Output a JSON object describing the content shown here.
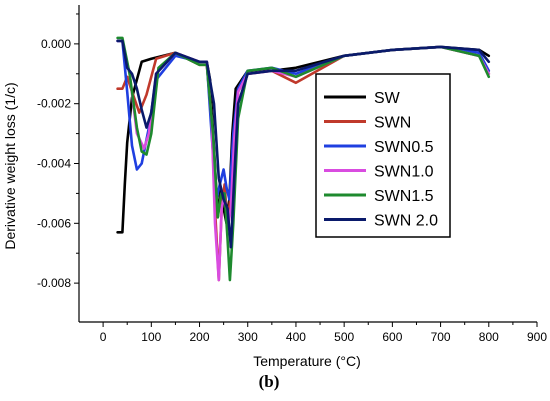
{
  "chart_data": {
    "type": "line",
    "xlabel": "Temperature (°C)",
    "ylabel": "Derivative weight loss (1/c)",
    "panel_label": "(b)",
    "xlim": [
      -50,
      900
    ],
    "ylim": [
      -0.0093,
      0.0013
    ],
    "x_ticks": [
      0,
      100,
      200,
      300,
      400,
      500,
      600,
      700,
      800,
      900
    ],
    "y_ticks": [
      0.0,
      -0.002,
      -0.004,
      -0.006,
      -0.008
    ],
    "y_tick_labels": [
      "0.000",
      "-0.002",
      "-0.004",
      "-0.006",
      "-0.008"
    ],
    "legend_position": "right-middle",
    "series": [
      {
        "name": "SW",
        "color": "#000000",
        "x": [
          30,
          40,
          45,
          50,
          60,
          80,
          100,
          150,
          200,
          215,
          222,
          230,
          238,
          244,
          250,
          256,
          262,
          268,
          275,
          300,
          350,
          400,
          500,
          600,
          700,
          780,
          800
        ],
        "y": [
          -0.0063,
          -0.0063,
          -0.0047,
          -0.0033,
          -0.0018,
          -0.0006,
          -0.0005,
          -0.0003,
          -0.0006,
          -0.0006,
          -0.0012,
          -0.0035,
          -0.0058,
          -0.0048,
          -0.0055,
          -0.006,
          -0.0052,
          -0.003,
          -0.0015,
          -0.0009,
          -0.0009,
          -0.0008,
          -0.0004,
          -0.0002,
          -0.0001,
          -0.0002,
          -0.0004
        ]
      },
      {
        "name": "SWN",
        "color": "#c0392b",
        "x": [
          30,
          40,
          50,
          60,
          75,
          90,
          110,
          150,
          200,
          215,
          225,
          232,
          240,
          246,
          252,
          258,
          265,
          272,
          280,
          300,
          350,
          400,
          500,
          600,
          700,
          780,
          800
        ],
        "y": [
          -0.0015,
          -0.0015,
          -0.0011,
          -0.0016,
          -0.0023,
          -0.0017,
          -0.0005,
          -0.0003,
          -0.0007,
          -0.0007,
          -0.0025,
          -0.0055,
          -0.0079,
          -0.0055,
          -0.0047,
          -0.006,
          -0.005,
          -0.003,
          -0.0016,
          -0.001,
          -0.0009,
          -0.0013,
          -0.0004,
          -0.0002,
          -0.0001,
          -0.0004,
          -0.001
        ]
      },
      {
        "name": "SWN0.5",
        "color": "#1f3fe0",
        "x": [
          30,
          40,
          50,
          60,
          70,
          80,
          95,
          110,
          150,
          200,
          215,
          225,
          235,
          242,
          250,
          256,
          262,
          270,
          280,
          300,
          350,
          400,
          500,
          600,
          700,
          780,
          800
        ],
        "y": [
          0.0001,
          0.0001,
          -0.0016,
          -0.0034,
          -0.0042,
          -0.004,
          -0.0028,
          -0.0012,
          -0.0004,
          -0.0006,
          -0.0006,
          -0.003,
          -0.0052,
          -0.0047,
          -0.0042,
          -0.0048,
          -0.0052,
          -0.003,
          -0.0015,
          -0.0009,
          -0.0008,
          -0.001,
          -0.0004,
          -0.0002,
          -0.0001,
          -0.0003,
          -0.0009
        ]
      },
      {
        "name": "SWN1.0",
        "color": "#d94ce0",
        "x": [
          30,
          40,
          55,
          70,
          85,
          95,
          110,
          150,
          200,
          215,
          225,
          232,
          240,
          246,
          252,
          258,
          265,
          272,
          280,
          300,
          350,
          400,
          500,
          600,
          700,
          780,
          800
        ],
        "y": [
          0.0001,
          0.0001,
          -0.001,
          -0.003,
          -0.0035,
          -0.003,
          -0.001,
          -0.0003,
          -0.0006,
          -0.0006,
          -0.0025,
          -0.006,
          -0.0079,
          -0.0055,
          -0.005,
          -0.0062,
          -0.0055,
          -0.0032,
          -0.0016,
          -0.001,
          -0.0009,
          -0.0011,
          -0.0004,
          -0.0002,
          -0.0001,
          -0.0004,
          -0.001
        ]
      },
      {
        "name": "SWN1.5",
        "color": "#1e8a2e",
        "x": [
          30,
          40,
          55,
          70,
          80,
          90,
          100,
          115,
          150,
          200,
          215,
          228,
          238,
          245,
          252,
          258,
          263,
          270,
          280,
          300,
          350,
          400,
          500,
          600,
          700,
          780,
          800
        ],
        "y": [
          0.0002,
          0.0002,
          -0.001,
          -0.0028,
          -0.0036,
          -0.0037,
          -0.003,
          -0.0008,
          -0.0003,
          -0.0007,
          -0.0007,
          -0.003,
          -0.0058,
          -0.005,
          -0.005,
          -0.0065,
          -0.0079,
          -0.006,
          -0.0025,
          -0.0009,
          -0.0008,
          -0.0011,
          -0.0004,
          -0.0002,
          -0.0001,
          -0.0004,
          -0.0011
        ]
      },
      {
        "name": "SWN 2.0",
        "color": "#0a1a6b",
        "x": [
          30,
          40,
          50,
          60,
          70,
          80,
          90,
          100,
          110,
          150,
          200,
          215,
          230,
          240,
          250,
          258,
          265,
          272,
          280,
          300,
          350,
          400,
          500,
          600,
          700,
          780,
          800
        ],
        "y": [
          0.0001,
          0.0001,
          -0.0008,
          -0.001,
          -0.0015,
          -0.0022,
          -0.0028,
          -0.0023,
          -0.001,
          -0.0003,
          -0.0006,
          -0.0006,
          -0.002,
          -0.0045,
          -0.0052,
          -0.0055,
          -0.0068,
          -0.0045,
          -0.002,
          -0.001,
          -0.0009,
          -0.0009,
          -0.0004,
          -0.0002,
          -0.0001,
          -0.0002,
          -0.0006
        ]
      }
    ]
  }
}
